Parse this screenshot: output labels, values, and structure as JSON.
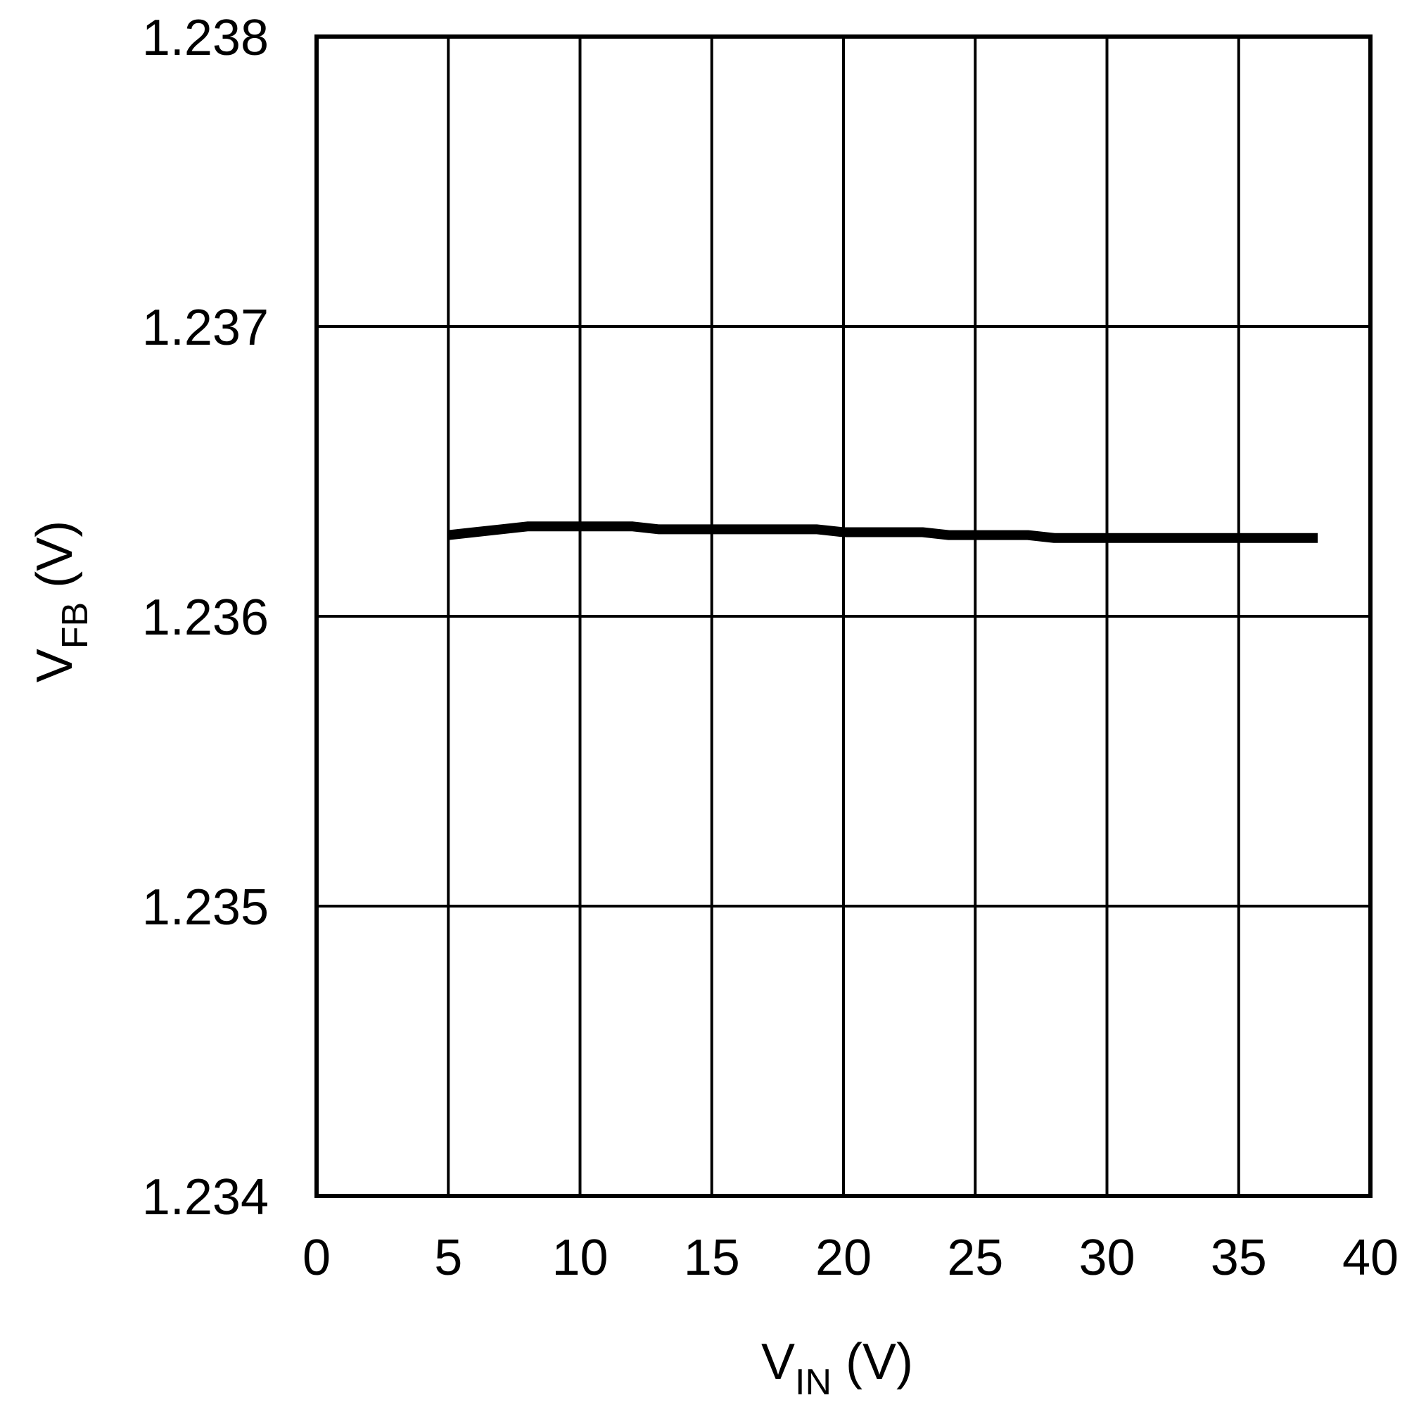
{
  "chart_data": {
    "type": "line",
    "title": "",
    "xlabel": {
      "main": "V",
      "sub": "IN",
      "unit": " (V)"
    },
    "ylabel": {
      "main": "V",
      "sub": "FB",
      "unit": " (V)"
    },
    "xlim": [
      0,
      40
    ],
    "ylim": [
      1.234,
      1.238
    ],
    "x_ticks": [
      0,
      5,
      10,
      15,
      20,
      25,
      30,
      35,
      40
    ],
    "x_tick_labels": [
      "0",
      "5",
      "10",
      "15",
      "20",
      "25",
      "30",
      "35",
      "40"
    ],
    "y_ticks": [
      1.234,
      1.235,
      1.236,
      1.237,
      1.238
    ],
    "y_tick_labels": [
      "1.234",
      "1.235",
      "1.236",
      "1.237",
      "1.238"
    ],
    "grid": true,
    "legend": "none",
    "line_color": "#000000",
    "series": [
      {
        "x": [
          5,
          6,
          7,
          8,
          9,
          10,
          11,
          12,
          13,
          14,
          15,
          16,
          17,
          18,
          19,
          20,
          21,
          22,
          23,
          24,
          25,
          26,
          27,
          28,
          29,
          30,
          32,
          34,
          36,
          38
        ],
        "y": [
          1.23628,
          1.23629,
          1.2363,
          1.23631,
          1.23631,
          1.23631,
          1.23631,
          1.23631,
          1.2363,
          1.2363,
          1.2363,
          1.2363,
          1.2363,
          1.2363,
          1.2363,
          1.23629,
          1.23629,
          1.23629,
          1.23629,
          1.23628,
          1.23628,
          1.23628,
          1.23628,
          1.23627,
          1.23627,
          1.23627,
          1.23627,
          1.23627,
          1.23627,
          1.23627
        ]
      }
    ]
  }
}
